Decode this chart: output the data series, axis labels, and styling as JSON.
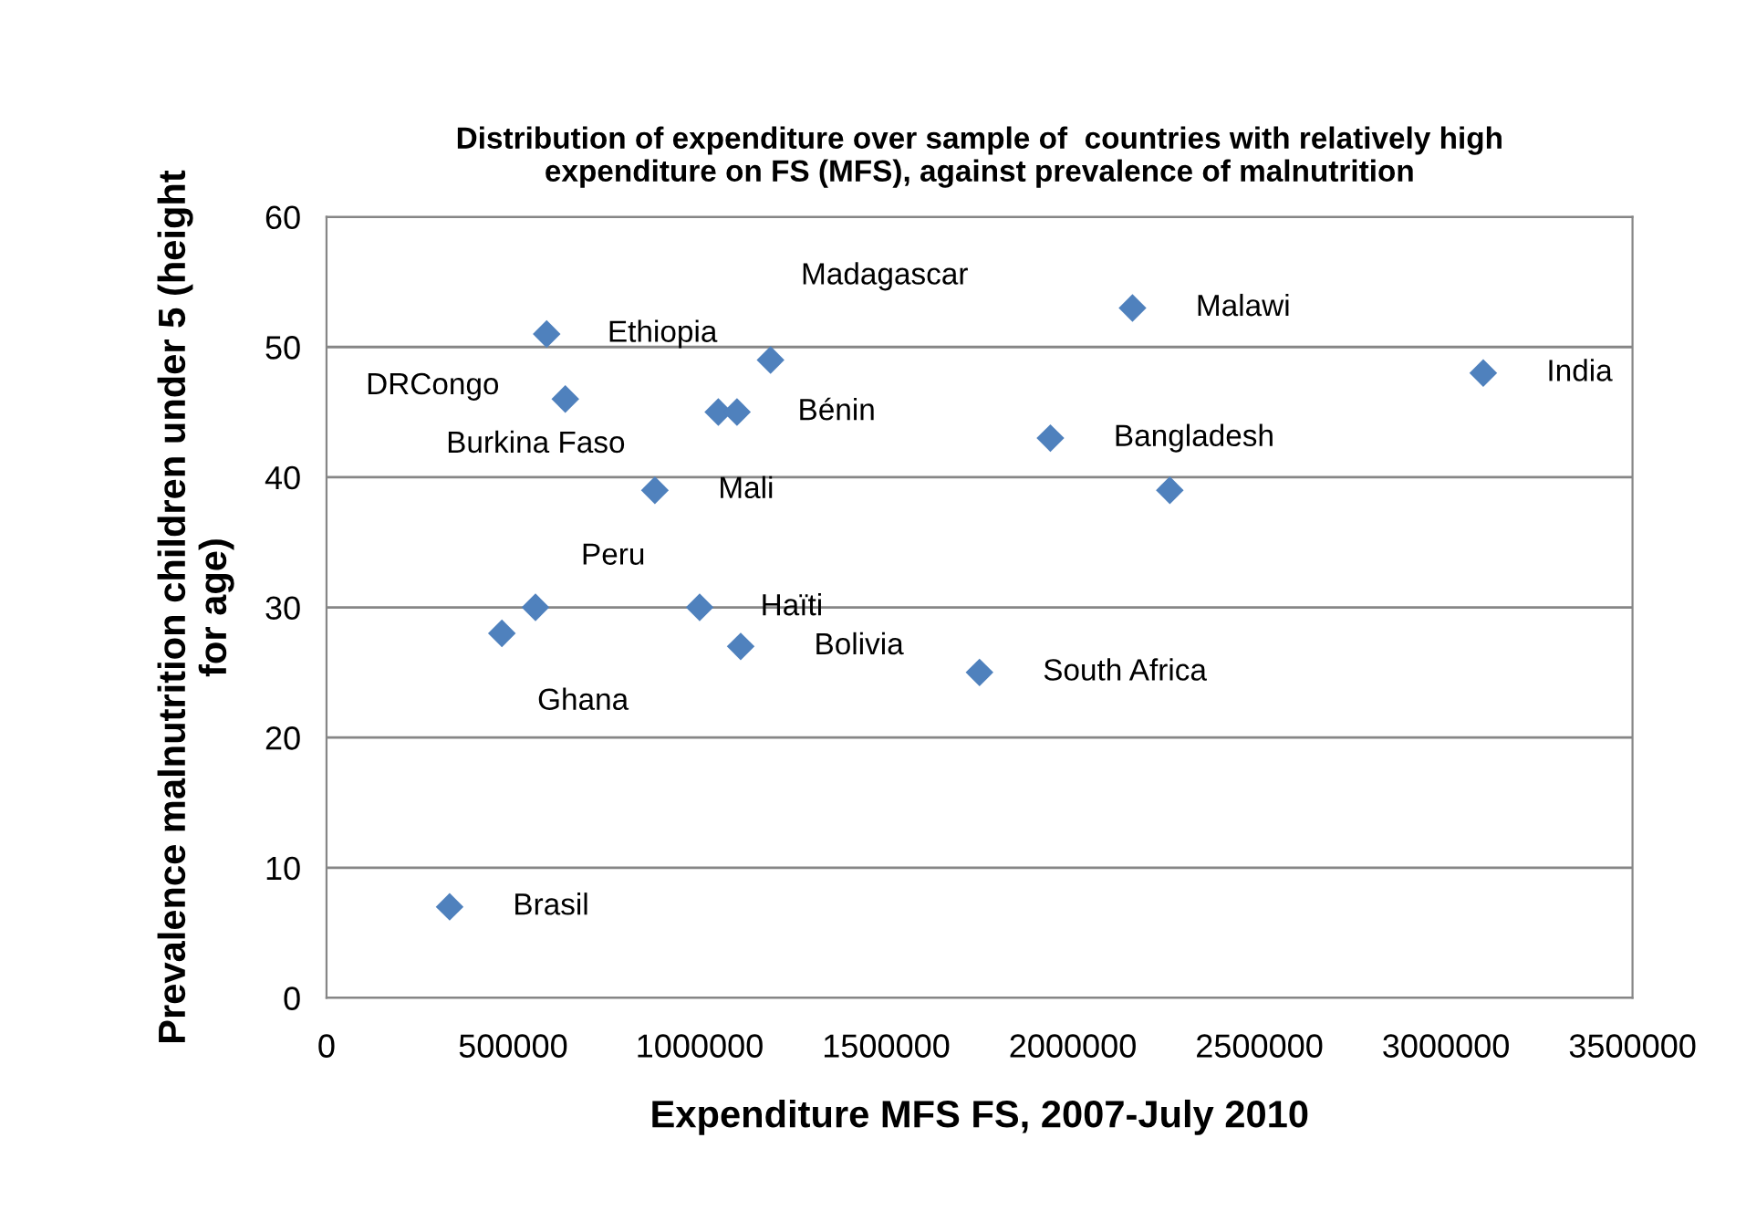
{
  "chart_data": {
    "type": "scatter",
    "title": "Distribution of expenditure over sample of  countries with relatively high\nexpenditure on FS (MFS), against prevalence of malnutrition",
    "xlabel": "Expenditure MFS FS, 2007-July 2010",
    "ylabel": "Prevalence malnutrition children under 5 (height\nfor age)",
    "series": [
      {
        "color": "#4f81bd",
        "x": [
          590000,
          640000,
          1050000,
          1100000,
          1190000,
          2160000,
          3100000,
          1940000,
          2260000,
          880000,
          560000,
          470000,
          1000000,
          1110000,
          1750000,
          330000
        ],
        "values": [
          51,
          46,
          45,
          45,
          49,
          53,
          48,
          43,
          39,
          39,
          30,
          28,
          30,
          27,
          25,
          7
        ]
      }
    ],
    "annotations": [
      {
        "text": "Ethiopia",
        "x": 590000,
        "y": 51
      },
      {
        "text": "DRCongo",
        "x": 640000,
        "y": 46
      },
      {
        "text": "Burkina Faso",
        "x": 640000,
        "y": 46
      },
      {
        "text": "Bénin",
        "x": 1100000,
        "y": 45
      },
      {
        "text": "Madagascar",
        "x": 1190000,
        "y": 49
      },
      {
        "text": "Malawi",
        "x": 2160000,
        "y": 53
      },
      {
        "text": "India",
        "x": 3100000,
        "y": 48
      },
      {
        "text": "Bangladesh",
        "x": 1940000,
        "y": 43
      },
      {
        "text": "Mali",
        "x": 880000,
        "y": 39
      },
      {
        "text": "Peru",
        "x": 560000,
        "y": 30
      },
      {
        "text": "Ghana",
        "x": 470000,
        "y": 28
      },
      {
        "text": "Haïti",
        "x": 1000000,
        "y": 30
      },
      {
        "text": "Bolivia",
        "x": 1110000,
        "y": 27
      },
      {
        "text": "South Africa",
        "x": 1750000,
        "y": 25
      },
      {
        "text": "Brasil",
        "x": 330000,
        "y": 7
      }
    ],
    "xlim": [
      0,
      3500000
    ],
    "xticks": [
      0,
      500000,
      1000000,
      1500000,
      2000000,
      2500000,
      3000000,
      3500000
    ],
    "ylim": [
      0,
      60
    ],
    "yticks": [
      0,
      10,
      20,
      30,
      40,
      50,
      60
    ],
    "grid": "y",
    "marker": "diamond",
    "legend": false
  }
}
